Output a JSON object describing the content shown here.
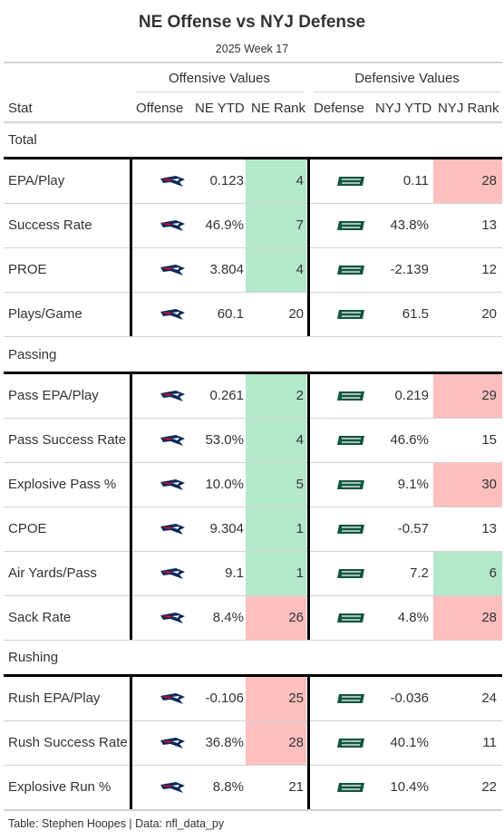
{
  "header": {
    "title": "NE Offense vs NYJ Defense",
    "subtitle": "2025 Week 17"
  },
  "spanners": {
    "offense": "Offensive Values",
    "defense": "Defensive Values"
  },
  "columns": {
    "stat": "Stat",
    "offense": "Offense",
    "ne_ytd": "NE YTD",
    "ne_rank": "NE Rank",
    "defense": "Defense",
    "nyj_ytd": "NYJ YTD",
    "nyj_rank": "NYJ Rank"
  },
  "footer": {
    "source": "Table: Stephen Hoopes | Data: nfl_data_py"
  },
  "colors": {
    "good": "#b3e8ca",
    "bad": "#ffbfbf",
    "patriots_navy": "#0b2a5b",
    "patriots_red": "#c8102e",
    "jets_green": "#125740"
  },
  "icons": {
    "offense_logo": "patriots-logo-icon",
    "defense_logo": "jets-logo-icon"
  },
  "chart_data": {
    "type": "table",
    "groups": [
      {
        "name": "Total",
        "rows": [
          {
            "stat": "EPA/Play",
            "ne_ytd": "0.123",
            "ne_rank": "4",
            "ne_hl": "good",
            "nyj_ytd": "0.11",
            "nyj_rank": "28",
            "nyj_hl": "bad"
          },
          {
            "stat": "Success Rate",
            "ne_ytd": "46.9%",
            "ne_rank": "7",
            "ne_hl": "good",
            "nyj_ytd": "43.8%",
            "nyj_rank": "13",
            "nyj_hl": ""
          },
          {
            "stat": "PROE",
            "ne_ytd": "3.804",
            "ne_rank": "4",
            "ne_hl": "good",
            "nyj_ytd": "-2.139",
            "nyj_rank": "12",
            "nyj_hl": ""
          },
          {
            "stat": "Plays/Game",
            "ne_ytd": "60.1",
            "ne_rank": "20",
            "ne_hl": "",
            "nyj_ytd": "61.5",
            "nyj_rank": "20",
            "nyj_hl": ""
          }
        ]
      },
      {
        "name": "Passing",
        "rows": [
          {
            "stat": "Pass EPA/Play",
            "ne_ytd": "0.261",
            "ne_rank": "2",
            "ne_hl": "good",
            "nyj_ytd": "0.219",
            "nyj_rank": "29",
            "nyj_hl": "bad"
          },
          {
            "stat": "Pass Success Rate",
            "ne_ytd": "53.0%",
            "ne_rank": "4",
            "ne_hl": "good",
            "nyj_ytd": "46.6%",
            "nyj_rank": "15",
            "nyj_hl": ""
          },
          {
            "stat": "Explosive Pass %",
            "ne_ytd": "10.0%",
            "ne_rank": "5",
            "ne_hl": "good",
            "nyj_ytd": "9.1%",
            "nyj_rank": "30",
            "nyj_hl": "bad"
          },
          {
            "stat": "CPOE",
            "ne_ytd": "9.304",
            "ne_rank": "1",
            "ne_hl": "good",
            "nyj_ytd": "-0.57",
            "nyj_rank": "13",
            "nyj_hl": ""
          },
          {
            "stat": "Air Yards/Pass",
            "ne_ytd": "9.1",
            "ne_rank": "1",
            "ne_hl": "good",
            "nyj_ytd": "7.2",
            "nyj_rank": "6",
            "nyj_hl": "good"
          },
          {
            "stat": "Sack Rate",
            "ne_ytd": "8.4%",
            "ne_rank": "26",
            "ne_hl": "bad",
            "nyj_ytd": "4.8%",
            "nyj_rank": "28",
            "nyj_hl": "bad"
          }
        ]
      },
      {
        "name": "Rushing",
        "rows": [
          {
            "stat": "Rush EPA/Play",
            "ne_ytd": "-0.106",
            "ne_rank": "25",
            "ne_hl": "bad",
            "nyj_ytd": "-0.036",
            "nyj_rank": "24",
            "nyj_hl": ""
          },
          {
            "stat": "Rush Success Rate",
            "ne_ytd": "36.8%",
            "ne_rank": "28",
            "ne_hl": "bad",
            "nyj_ytd": "40.1%",
            "nyj_rank": "11",
            "nyj_hl": ""
          },
          {
            "stat": "Explosive Run %",
            "ne_ytd": "8.8%",
            "ne_rank": "21",
            "ne_hl": "",
            "nyj_ytd": "10.4%",
            "nyj_rank": "22",
            "nyj_hl": ""
          }
        ]
      }
    ]
  }
}
